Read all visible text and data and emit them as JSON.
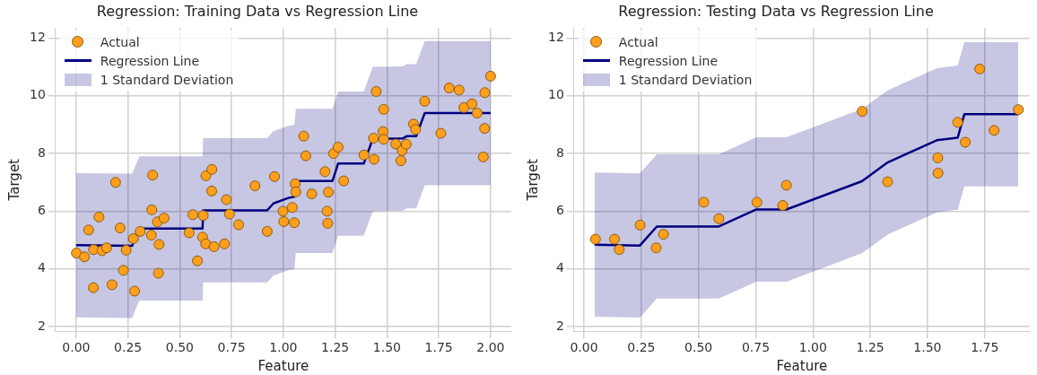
{
  "chart_data": [
    {
      "type": "scatter",
      "title": "Regression: Training Data vs Regression Line",
      "xlabel": "Feature",
      "ylabel": "Target",
      "xlim": [
        -0.1,
        2.1
      ],
      "ylim": [
        1.84,
        12.35
      ],
      "xticks": [
        {
          "value": 0,
          "label": "0.00"
        },
        {
          "value": 0.25,
          "label": "0.25"
        },
        {
          "value": 0.5,
          "label": "0.50"
        },
        {
          "value": 0.75,
          "label": "0.75"
        },
        {
          "value": 1,
          "label": "1.00"
        },
        {
          "value": 1.25,
          "label": "1.25"
        },
        {
          "value": 1.5,
          "label": "1.50"
        },
        {
          "value": 1.75,
          "label": "1.75"
        },
        {
          "value": 2,
          "label": "2.00"
        }
      ],
      "yticks": [
        2,
        4,
        6,
        8,
        10,
        12
      ],
      "grid": true,
      "legend": "top left",
      "annotations": [
        "1 Standard Deviation"
      ],
      "series": [
        {
          "type": "scatter",
          "name": "Actual",
          "color": "#ff9f1c",
          "marker": "circle",
          "x": [
            0.001,
            0.04,
            0.06,
            0.083,
            0.084,
            0.11,
            0.125,
            0.147,
            0.173,
            0.19,
            0.212,
            0.228,
            0.241,
            0.276,
            0.282,
            0.309,
            0.365,
            0.369,
            0.363,
            0.392,
            0.4,
            0.397,
            0.424,
            0.545,
            0.563,
            0.585,
            0.61,
            0.613,
            0.626,
            0.625,
            0.655,
            0.654,
            0.665,
            0.716,
            0.725,
            0.74,
            0.784,
            0.863,
            0.922,
            0.957,
            0.998,
            1.002,
            1.043,
            1.053,
            1.057,
            1.06,
            1.098,
            1.108,
            1.137,
            1.201,
            1.211,
            1.214,
            1.217,
            1.242,
            1.264,
            1.291,
            1.389,
            1.435,
            1.438,
            1.448,
            1.481,
            1.484,
            1.484,
            1.542,
            1.567,
            1.573,
            1.593,
            1.628,
            1.638,
            1.682,
            1.76,
            1.8,
            1.848,
            1.871,
            1.91,
            1.935,
            1.971,
            1.965,
            1.972,
            2.0
          ],
          "values": [
            4.55,
            4.42,
            5.35,
            3.35,
            4.67,
            5.8,
            4.63,
            4.73,
            3.45,
            7.0,
            5.42,
            3.95,
            4.65,
            5.05,
            3.23,
            5.3,
            6.05,
            7.25,
            5.17,
            5.63,
            4.85,
            3.85,
            5.76,
            5.25,
            5.88,
            4.28,
            5.1,
            5.85,
            7.23,
            4.87,
            7.45,
            6.7,
            4.77,
            4.87,
            6.4,
            5.9,
            5.53,
            6.88,
            5.3,
            7.2,
            6.0,
            5.64,
            6.13,
            5.6,
            6.95,
            6.67,
            8.6,
            7.92,
            6.6,
            7.37,
            6.0,
            5.58,
            6.66,
            8.0,
            8.22,
            7.05,
            7.95,
            8.53,
            7.8,
            10.15,
            8.76,
            9.53,
            8.49,
            8.33,
            7.75,
            8.1,
            8.32,
            9.02,
            8.83,
            9.81,
            8.7,
            10.27,
            10.2,
            9.59,
            9.72,
            9.4,
            8.87,
            7.88,
            10.11,
            10.68
          ]
        },
        {
          "type": "line",
          "name": "Regression Line",
          "color": "#000080",
          "marker": "none",
          "x": [
            0,
            0.27,
            0.305,
            0.61,
            0.613,
            0.922,
            0.952,
            1.024,
            1.053,
            1.06,
            1.237,
            1.264,
            1.388,
            1.431,
            1.576,
            1.595,
            1.641,
            1.682,
            2.0
          ],
          "values": [
            4.82,
            4.8,
            5.4,
            5.4,
            6.03,
            6.03,
            6.27,
            6.46,
            6.5,
            7.05,
            7.05,
            7.65,
            7.65,
            8.5,
            8.52,
            8.6,
            8.6,
            9.4,
            9.4
          ],
          "lower": [
            2.32,
            2.3,
            2.9,
            2.9,
            3.53,
            3.53,
            3.77,
            3.96,
            4.0,
            4.55,
            4.55,
            5.15,
            5.15,
            6.0,
            6.02,
            6.1,
            6.1,
            6.9,
            6.9
          ],
          "upper": [
            7.32,
            7.3,
            7.9,
            7.9,
            8.53,
            8.53,
            8.77,
            8.96,
            9.0,
            9.55,
            9.55,
            10.15,
            10.15,
            11.0,
            11.02,
            11.1,
            11.1,
            11.9,
            11.9
          ]
        }
      ]
    },
    {
      "type": "scatter",
      "title": "Regression: Testing Data vs Regression Line",
      "xlabel": "Feature",
      "ylabel": "Target",
      "xlim": [
        -0.044,
        1.947
      ],
      "ylim": [
        1.84,
        12.35
      ],
      "xticks": [
        {
          "value": 0,
          "label": "0.00"
        },
        {
          "value": 0.25,
          "label": "0.25"
        },
        {
          "value": 0.5,
          "label": "0.50"
        },
        {
          "value": 0.75,
          "label": "0.75"
        },
        {
          "value": 1,
          "label": "1.00"
        },
        {
          "value": 1.25,
          "label": "1.25"
        },
        {
          "value": 1.5,
          "label": "1.50"
        },
        {
          "value": 1.75,
          "label": "1.75"
        }
      ],
      "yticks": [
        2,
        4,
        6,
        8,
        10,
        12
      ],
      "grid": true,
      "legend": "top left",
      "annotations": [
        "1 Standard Deviation"
      ],
      "series": [
        {
          "type": "scatter",
          "name": "Actual",
          "color": "#ff9f1c",
          "marker": "circle",
          "x": [
            0.05,
            0.133,
            0.154,
            0.245,
            0.315,
            0.347,
            0.523,
            0.589,
            0.755,
            0.868,
            0.884,
            1.215,
            1.326,
            1.545,
            1.546,
            1.632,
            1.665,
            1.728,
            1.791,
            1.897
          ],
          "values": [
            5.03,
            5.03,
            4.67,
            5.52,
            4.73,
            5.2,
            6.31,
            5.74,
            6.31,
            6.2,
            6.9,
            9.46,
            7.02,
            7.85,
            7.32,
            9.08,
            8.39,
            10.93,
            8.8,
            9.52
          ]
        },
        {
          "type": "line",
          "name": "Regression Line",
          "color": "#000080",
          "marker": "none",
          "x": [
            0.046,
            0.244,
            0.318,
            0.589,
            0.753,
            0.884,
            1.214,
            1.326,
            1.541,
            1.632,
            1.661,
            1.897
          ],
          "values": [
            4.84,
            4.81,
            5.47,
            5.47,
            6.06,
            6.06,
            7.04,
            7.69,
            8.46,
            8.55,
            9.36,
            9.36
          ],
          "lower": [
            2.34,
            2.31,
            2.97,
            2.97,
            3.56,
            3.56,
            4.54,
            5.19,
            5.96,
            6.05,
            6.86,
            6.86
          ],
          "upper": [
            7.34,
            7.31,
            7.97,
            7.97,
            8.56,
            8.56,
            9.54,
            10.19,
            10.96,
            11.05,
            11.86,
            11.86
          ]
        }
      ]
    }
  ]
}
